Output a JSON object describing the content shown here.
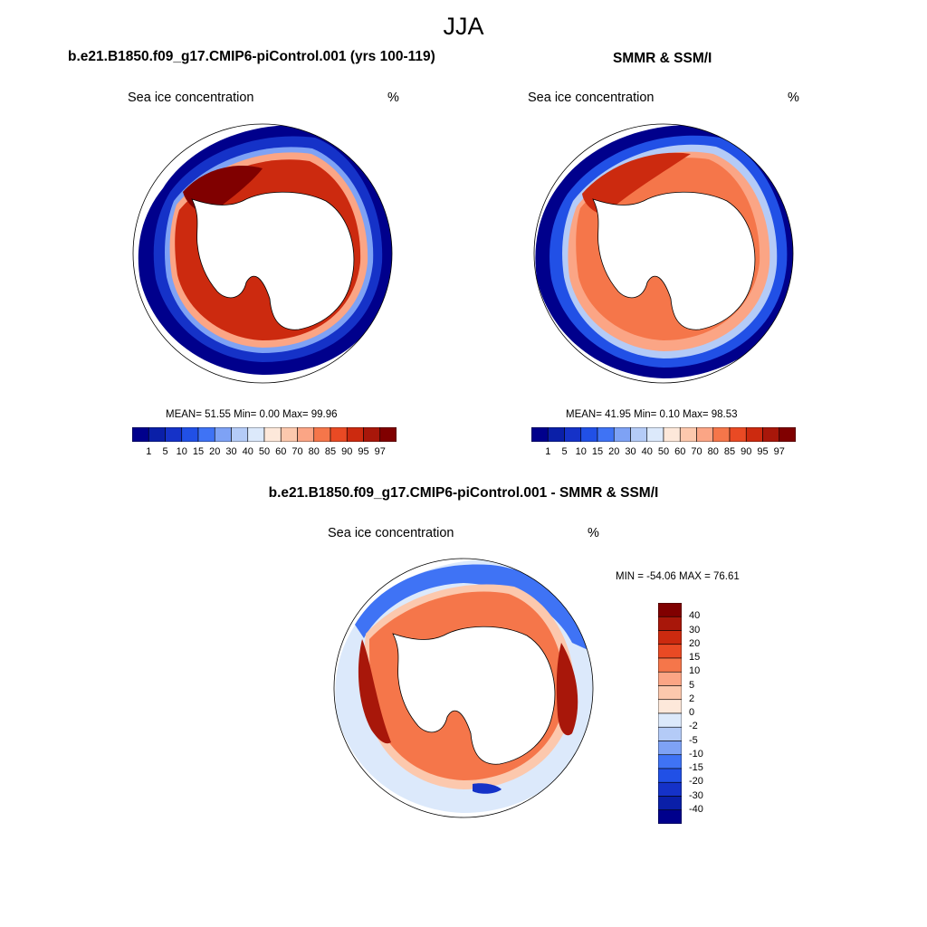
{
  "figure": {
    "title": "JJA",
    "panel_left_title": "b.e21.B1850.f09_g17.CMIP6-piControl.001 (yrs 100-119)",
    "panel_right_title": "SMMR & SSM/I",
    "panel_diff_title": "b.e21.B1850.f09_g17.CMIP6-piControl.001 - SMMR & SSM/I",
    "variable_label": "Sea ice concentration",
    "units_label": "%"
  },
  "stats": {
    "left": "MEAN=  51.55  Min=    0.00  Max=  99.96",
    "right": "MEAN=  41.95  Min=    0.10  Max=  98.53",
    "diff": "MIN = -54.06 MAX =  76.61"
  },
  "chart_data": [
    {
      "type": "heatmap",
      "name": "model-sea-ice-concentration",
      "projection": "south-polar-stereographic",
      "title": "b.e21.B1850.f09_g17.CMIP6-piControl.001 (yrs 100-119)",
      "units": "%",
      "mean": 51.55,
      "min": 0.0,
      "max": 99.96,
      "colorbar": {
        "levels": [
          "1",
          "5",
          "10",
          "15",
          "20",
          "30",
          "40",
          "50",
          "60",
          "70",
          "80",
          "85",
          "90",
          "95",
          "97"
        ],
        "colors": [
          "#00008c",
          "#0a1fa8",
          "#1532c8",
          "#2150e6",
          "#3f73f5",
          "#7ea2f5",
          "#b4cbf7",
          "#dce9fb",
          "#fde8da",
          "#fcc8ad",
          "#fba585",
          "#f5764a",
          "#e94a24",
          "#cc2a0f",
          "#a8170a",
          "#800000"
        ]
      }
    },
    {
      "type": "heatmap",
      "name": "observed-sea-ice-concentration",
      "projection": "south-polar-stereographic",
      "title": "SMMR & SSM/I",
      "units": "%",
      "mean": 41.95,
      "min": 0.1,
      "max": 98.53,
      "colorbar": {
        "levels": [
          "1",
          "5",
          "10",
          "15",
          "20",
          "30",
          "40",
          "50",
          "60",
          "70",
          "80",
          "85",
          "90",
          "95",
          "97"
        ],
        "colors": [
          "#00008c",
          "#0a1fa8",
          "#1532c8",
          "#2150e6",
          "#3f73f5",
          "#7ea2f5",
          "#b4cbf7",
          "#dce9fb",
          "#fde8da",
          "#fcc8ad",
          "#fba585",
          "#f5764a",
          "#e94a24",
          "#cc2a0f",
          "#a8170a",
          "#800000"
        ]
      }
    },
    {
      "type": "heatmap",
      "name": "difference-sea-ice-concentration",
      "projection": "south-polar-stereographic",
      "title": "b.e21.B1850.f09_g17.CMIP6-piControl.001 - SMMR & SSM/I",
      "units": "%",
      "min": -54.06,
      "max": 76.61,
      "colorbar": {
        "levels": [
          "40",
          "30",
          "20",
          "15",
          "10",
          "5",
          "2",
          "0",
          "-2",
          "-5",
          "-10",
          "-15",
          "-20",
          "-30",
          "-40"
        ],
        "colors": [
          "#800000",
          "#a8170a",
          "#cc2a0f",
          "#e94a24",
          "#f5764a",
          "#fba585",
          "#fcc8ad",
          "#fde8da",
          "#dce9fb",
          "#b4cbf7",
          "#7ea2f5",
          "#3f73f5",
          "#2150e6",
          "#1532c8",
          "#0a1fa8",
          "#00008c"
        ]
      }
    }
  ]
}
